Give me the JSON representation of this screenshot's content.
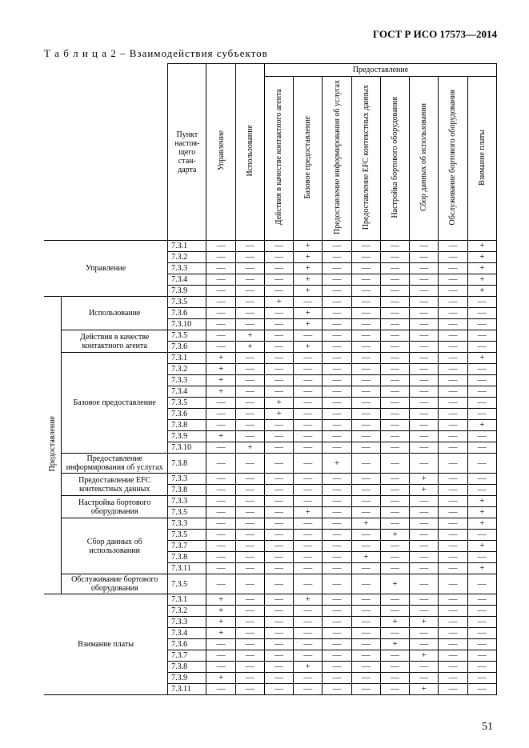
{
  "doc_id": "ГОСТ Р ИСО 17573—2014",
  "caption_prefix": "Т а б л и ц а   2 – ",
  "caption_title": "Взаимодействия субъектов",
  "page_number": "51",
  "group_header": "Предоставление",
  "side_label": "Предоставление",
  "stub_header": "Пункт настоя-щего стан-дарта",
  "col_headers": [
    "Управление",
    "Использование",
    "Действия в качестве контактного агента",
    "Базовое предоставление",
    "Предоставление информирования об услугах",
    "Предоставление EFC контекстных данных",
    "Настройка бортового оборудования",
    "Сбор данных об использовании",
    "Обслуживание бортового оборудования",
    "Взимание платы"
  ],
  "groups": [
    {
      "label": "Управление",
      "flatRows": [
        {
          "n": "7.3.1",
          "c": [
            "—",
            "—",
            "—",
            "+",
            "—",
            "—",
            "—",
            "—",
            "—",
            "+"
          ]
        },
        {
          "n": "7.3.2",
          "c": [
            "—",
            "—",
            "—",
            "+",
            "—",
            "—",
            "—",
            "—",
            "—",
            "+"
          ]
        },
        {
          "n": "7.3.3",
          "c": [
            "—",
            "—",
            "—",
            "+",
            "—",
            "—",
            "—",
            "—",
            "—",
            "+"
          ]
        },
        {
          "n": "7.3.4",
          "c": [
            "—",
            "—",
            "—",
            "+",
            "—",
            "—",
            "—",
            "—",
            "—",
            "+"
          ]
        },
        {
          "n": "7.3.9",
          "c": [
            "—",
            "—",
            "—",
            "+",
            "—",
            "—",
            "—",
            "—",
            "—",
            "+"
          ]
        }
      ]
    },
    {
      "label": "Использование",
      "indent": true,
      "flatRows": [
        {
          "n": "7.3.5",
          "c": [
            "—",
            "—",
            "+",
            "—",
            "—",
            "—",
            "—",
            "—",
            "—",
            "—"
          ]
        },
        {
          "n": "7.3.6",
          "c": [
            "—",
            "—",
            "—",
            "+",
            "—",
            "—",
            "—",
            "—",
            "—",
            "—"
          ]
        },
        {
          "n": "7.3.10",
          "c": [
            "—",
            "—",
            "—",
            "+",
            "—",
            "—",
            "—",
            "—",
            "—",
            "—"
          ]
        }
      ]
    },
    {
      "label": "Действия в качестве контактного агента",
      "indent": true,
      "flatRows": [
        {
          "n": "7.3.5",
          "c": [
            "—",
            "+",
            "—",
            "—",
            "—",
            "—",
            "—",
            "—",
            "—",
            "—"
          ]
        },
        {
          "n": "7.3.6",
          "c": [
            "—",
            "+",
            "—",
            "+",
            "—",
            "—",
            "—",
            "—",
            "—",
            "—"
          ]
        }
      ]
    },
    {
      "label": "Базовое предоставление",
      "indent": true,
      "flatRows": [
        {
          "n": "7.3.1",
          "c": [
            "+",
            "—",
            "—",
            "—",
            "—",
            "—",
            "—",
            "—",
            "—",
            "+"
          ]
        },
        {
          "n": "7.3.2",
          "c": [
            "+",
            "—",
            "—",
            "—",
            "—",
            "—",
            "—",
            "—",
            "—",
            "—"
          ]
        },
        {
          "n": "7.3.3",
          "c": [
            "+",
            "—",
            "—",
            "—",
            "—",
            "—",
            "—",
            "—",
            "—",
            "—"
          ]
        },
        {
          "n": "7.3.4",
          "c": [
            "+",
            "—",
            "—",
            "—",
            "—",
            "—",
            "—",
            "—",
            "—",
            "—"
          ]
        },
        {
          "n": "7.3.5",
          "c": [
            "—",
            "—",
            "+",
            "—",
            "—",
            "—",
            "—",
            "—",
            "—",
            "—"
          ]
        },
        {
          "n": "7.3.6",
          "c": [
            "—",
            "—",
            "+",
            "—",
            "—",
            "—",
            "—",
            "—",
            "—",
            "—"
          ]
        },
        {
          "n": "7.3.8",
          "c": [
            "—",
            "—",
            "—",
            "—",
            "—",
            "—",
            "—",
            "—",
            "—",
            "+"
          ]
        },
        {
          "n": "7.3.9",
          "c": [
            "+",
            "—",
            "—",
            "—",
            "—",
            "—",
            "—",
            "—",
            "—",
            "—"
          ]
        },
        {
          "n": "7.3.10",
          "c": [
            "—",
            "+",
            "—",
            "—",
            "—",
            "—",
            "—",
            "—",
            "—",
            "—"
          ]
        }
      ]
    },
    {
      "label": "Предоставление информирования об услугах",
      "indent": true,
      "flatRows": [
        {
          "n": "7.3.8",
          "c": [
            "—",
            "—",
            "—",
            "—",
            "+",
            "—",
            "—",
            "—",
            "—",
            "—"
          ]
        }
      ]
    },
    {
      "label": "Предоставление EFC контекстных данных",
      "indent": true,
      "flatRows": [
        {
          "n": "7.3.3",
          "c": [
            "—",
            "—",
            "—",
            "—",
            "—",
            "—",
            "—",
            "+",
            "—",
            "—"
          ]
        },
        {
          "n": "7.3.8",
          "c": [
            "—",
            "—",
            "—",
            "—",
            "—",
            "—",
            "—",
            "+",
            "—",
            "—"
          ]
        }
      ]
    },
    {
      "label": "Настройка бортового оборудования",
      "indent": true,
      "flatRows": [
        {
          "n": "7.3.3",
          "c": [
            "—",
            "—",
            "—",
            "—",
            "—",
            "—",
            "—",
            "—",
            "—",
            "+"
          ]
        },
        {
          "n": "7.3.5",
          "c": [
            "—",
            "—",
            "—",
            "+",
            "—",
            "—",
            "—",
            "—",
            "—",
            "+"
          ]
        }
      ]
    },
    {
      "label": "Сбор данных об использовании",
      "indent": true,
      "flatRows": [
        {
          "n": "7.3.3",
          "c": [
            "—",
            "—",
            "—",
            "—",
            "—",
            "+",
            "—",
            "—",
            "—",
            "+"
          ]
        },
        {
          "n": "7.3.5",
          "c": [
            "—",
            "—",
            "—",
            "—",
            "—",
            "—",
            "+",
            "—",
            "—",
            "—"
          ]
        },
        {
          "n": "7.3.7",
          "c": [
            "—",
            "—",
            "—",
            "—",
            "—",
            "—",
            "—",
            "—",
            "—",
            "+"
          ]
        },
        {
          "n": "7.3.8",
          "c": [
            "—",
            "—",
            "—",
            "—",
            "—",
            "+",
            "—",
            "—",
            "—",
            "—"
          ]
        },
        {
          "n": "7.3.11",
          "c": [
            "—",
            "—",
            "—",
            "—",
            "—",
            "—",
            "—",
            "—",
            "—",
            "+"
          ]
        }
      ]
    },
    {
      "label": "Обслуживание бортового оборудования",
      "indent": true,
      "flatRows": [
        {
          "n": "7.3.5",
          "c": [
            "—",
            "—",
            "—",
            "—",
            "—",
            "—",
            "+",
            "—",
            "—",
            "—"
          ]
        }
      ]
    },
    {
      "label": "Взимание платы",
      "flatRows": [
        {
          "n": "7.3.1",
          "c": [
            "+",
            "—",
            "—",
            "+",
            "—",
            "—",
            "—",
            "—",
            "—",
            "—"
          ]
        },
        {
          "n": "7.3.2",
          "c": [
            "+",
            "—",
            "—",
            "—",
            "—",
            "—",
            "—",
            "—",
            "—",
            "—"
          ]
        },
        {
          "n": "7.3.3",
          "c": [
            "+",
            "—",
            "—",
            "—",
            "—",
            "—",
            "+",
            "+",
            "—",
            "—"
          ]
        },
        {
          "n": "7.3.4",
          "c": [
            "+",
            "—",
            "—",
            "—",
            "—",
            "—",
            "—",
            "—",
            "—",
            "—"
          ]
        },
        {
          "n": "7.3.6",
          "c": [
            "—",
            "—",
            "—",
            "—",
            "—",
            "—",
            "+",
            "—",
            "—",
            "—"
          ]
        },
        {
          "n": "7.3.7",
          "c": [
            "—",
            "—",
            "—",
            "—",
            "—",
            "—",
            "—",
            "+",
            "—",
            "—"
          ]
        },
        {
          "n": "7.3.8",
          "c": [
            "—",
            "—",
            "—",
            "+",
            "—",
            "—",
            "—",
            "—",
            "—",
            "—"
          ]
        },
        {
          "n": "7.3.9",
          "c": [
            "+",
            "—",
            "—",
            "—",
            "—",
            "—",
            "—",
            "—",
            "—",
            "—"
          ]
        },
        {
          "n": "7.3.11",
          "c": [
            "—",
            "—",
            "—",
            "—",
            "—",
            "—",
            "—",
            "+",
            "—",
            "—"
          ]
        }
      ]
    }
  ]
}
